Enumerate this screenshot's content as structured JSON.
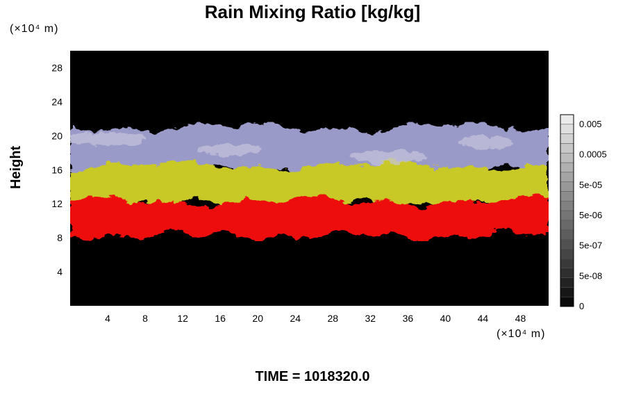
{
  "chart_data": {
    "type": "heatmap",
    "title": "Rain Mixing Ratio [kg/kg]",
    "ylabel": "Height",
    "xlabel": "",
    "x_unit": "(×10⁴ m)",
    "y_unit": "(×10⁴ m)",
    "x_ticks": [
      4,
      8,
      12,
      16,
      20,
      24,
      28,
      32,
      36,
      40,
      44,
      48
    ],
    "y_ticks": [
      4,
      8,
      12,
      16,
      20,
      24,
      28
    ],
    "xlim": [
      0,
      51
    ],
    "ylim": [
      0,
      30
    ],
    "colorbar": {
      "labels": [
        "0.005",
        "0.0005",
        "5e-05",
        "5e-06",
        "5e-07",
        "5e-08",
        "0"
      ],
      "scale": "log"
    },
    "layers": [
      {
        "name": "upper",
        "y_range": [
          16,
          21
        ],
        "color": "#9a9ac8"
      },
      {
        "name": "middle",
        "y_range": [
          12,
          16.5
        ],
        "color": "#c8c828"
      },
      {
        "name": "lower",
        "y_range": [
          8.3,
          12.3
        ],
        "color": "#ee1010"
      }
    ],
    "background": "#000000"
  },
  "footer": {
    "time_text": "TIME = 1018320.0"
  }
}
